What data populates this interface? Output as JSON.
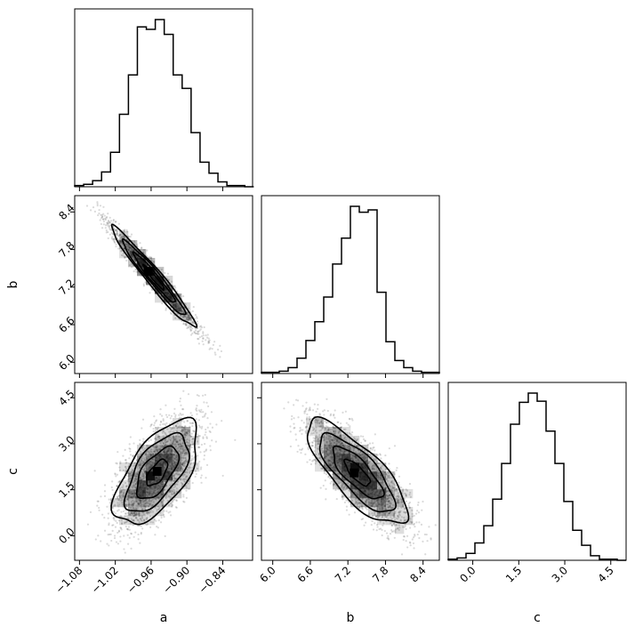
{
  "colors": {
    "ink": "#000000",
    "background": "#ffffff",
    "cloud": "#1a1a1a"
  },
  "variables": [
    {
      "key": "a",
      "label": "a",
      "range": [
        -1.088,
        -0.79
      ],
      "ticks": [
        "−1.08",
        "−1.02",
        "−0.96",
        "−0.90",
        "−0.84"
      ],
      "tick_values": [
        -1.08,
        -1.02,
        -0.96,
        -0.9,
        -0.84
      ]
    },
    {
      "key": "b",
      "label": "b",
      "range": [
        5.82,
        8.66
      ],
      "ticks": [
        "6.0",
        "6.6",
        "7.2",
        "7.8",
        "8.4"
      ],
      "tick_values": [
        6.0,
        6.6,
        7.2,
        7.8,
        8.4
      ]
    },
    {
      "key": "c",
      "label": "c",
      "range": [
        -0.8,
        5.0
      ],
      "ticks": [
        "0.0",
        "1.5",
        "3.0",
        "4.5"
      ],
      "tick_values": [
        0.0,
        1.5,
        3.0,
        4.5
      ]
    }
  ],
  "chart_data": {
    "type": "corner",
    "histograms": [
      {
        "variable": "a",
        "bin_edges": [
          -1.088,
          -1.073,
          -1.058,
          -1.043,
          -1.028,
          -1.013,
          -0.998,
          -0.983,
          -0.968,
          -0.953,
          -0.938,
          -0.923,
          -0.908,
          -0.893,
          -0.878,
          -0.863,
          -0.848,
          -0.833,
          -0.818,
          -0.803,
          -0.788
        ],
        "counts": [
          1,
          2,
          5,
          12,
          28,
          59,
          91,
          130,
          128,
          136,
          124,
          91,
          80,
          44,
          20,
          11,
          4,
          1,
          1,
          0
        ]
      },
      {
        "variable": "b",
        "bin_edges": [
          5.82,
          5.962,
          6.104,
          6.246,
          6.388,
          6.53,
          6.672,
          6.814,
          6.956,
          7.098,
          7.24,
          7.382,
          7.524,
          7.666,
          7.808,
          7.95,
          8.092,
          8.234,
          8.376,
          8.518,
          8.66
        ],
        "counts": [
          1,
          1,
          2,
          5,
          13,
          28,
          44,
          65,
          93,
          115,
          142,
          137,
          139,
          69,
          27,
          11,
          5,
          2,
          1,
          1
        ]
      },
      {
        "variable": "c",
        "bin_edges": [
          -0.8,
          -0.51,
          -0.22,
          0.07,
          0.36,
          0.65,
          0.94,
          1.23,
          1.52,
          1.81,
          2.1,
          2.39,
          2.68,
          2.97,
          3.26,
          3.55,
          3.84,
          4.13,
          4.42,
          4.71,
          5.0
        ],
        "counts": [
          1,
          2,
          6,
          15,
          30,
          53,
          84,
          118,
          137,
          145,
          138,
          112,
          84,
          51,
          26,
          13,
          4,
          1,
          1,
          0
        ]
      }
    ],
    "pairs": [
      {
        "x": "a",
        "y": "b",
        "mean": [
          -0.955,
          7.35
        ],
        "sd": [
          0.035,
          0.4
        ],
        "corr": -0.97,
        "peak": [
          -0.965,
          7.45
        ]
      },
      {
        "x": "a",
        "y": "c",
        "mean": [
          -0.95,
          2.05
        ],
        "sd": [
          0.035,
          0.85
        ],
        "corr": 0.62,
        "peak": [
          -0.95,
          2.1
        ]
      },
      {
        "x": "b",
        "y": "c",
        "mean": [
          7.35,
          2.05
        ],
        "sd": [
          0.4,
          0.85
        ],
        "corr": -0.78,
        "peak": [
          7.3,
          2.05
        ]
      }
    ],
    "contour_levels_sigma": [
      0.5,
      1.0,
      1.5,
      2.0
    ],
    "samples_per_cloud": 2500,
    "grid": false,
    "legend": "none"
  }
}
